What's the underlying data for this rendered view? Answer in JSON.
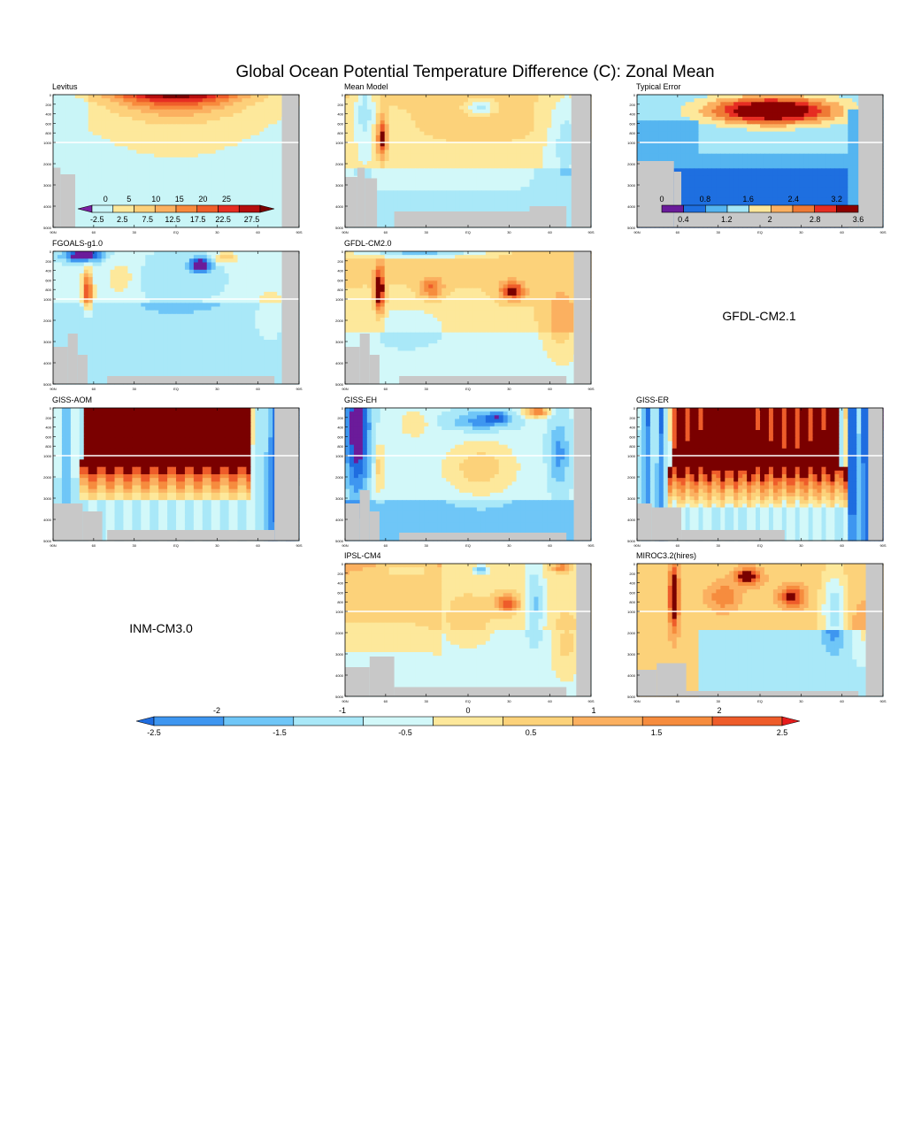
{
  "chart_data": {
    "type": "heatmap",
    "title": "Global Ocean Potential Temperature Difference (C): Zonal Mean",
    "y_depth_ticks_upper": [
      "0",
      "200",
      "400",
      "600",
      "800",
      "1000"
    ],
    "y_depth_ticks_lower": [
      "2000",
      "3000",
      "4000",
      "5000"
    ],
    "x_lat_ticks": [
      "90N",
      "60",
      "30",
      "EQ",
      "30",
      "60",
      "90S"
    ],
    "panels": [
      {
        "name": "Levitus",
        "kind": "climatology",
        "field": "levitus"
      },
      {
        "name": "Mean Model",
        "kind": "diff",
        "field": "mean"
      },
      {
        "name": "Typical Error",
        "kind": "error",
        "field": "typical"
      },
      {
        "name": "FGOALS-g1.0",
        "kind": "diff",
        "field": "fgoals"
      },
      {
        "name": "GFDL-CM2.0",
        "kind": "diff",
        "field": "gfdl20"
      },
      {
        "name": "GFDL-CM2.1",
        "kind": "label_only"
      },
      {
        "name": "GISS-AOM",
        "kind": "diff",
        "field": "aom"
      },
      {
        "name": "GISS-EH",
        "kind": "diff",
        "field": "eh"
      },
      {
        "name": "GISS-ER",
        "kind": "diff",
        "field": "er"
      },
      {
        "name": "INM-CM3.0",
        "kind": "label_only"
      },
      {
        "name": "IPSL-CM4",
        "kind": "diff",
        "field": "ipsl"
      },
      {
        "name": "MIROC3.2(hires)",
        "kind": "diff",
        "field": "miroc"
      }
    ],
    "colorbar_levitus": {
      "top_labels": [
        "0",
        "5",
        "10",
        "15",
        "20",
        "25"
      ],
      "bottom_labels": [
        "-2.5",
        "2.5",
        "7.5",
        "12.5",
        "17.5",
        "22.5",
        "27.5"
      ],
      "colors": [
        "#7b1fa2",
        "#c9f5f7",
        "#fde89b",
        "#fdd07a",
        "#fbb060",
        "#f88a3d",
        "#ef5e2a",
        "#e62d22",
        "#b50d0d",
        "#7a0000"
      ]
    },
    "colorbar_error": {
      "top_labels": [
        "0",
        "0.8",
        "1.6",
        "2.4",
        "3.2"
      ],
      "bottom_labels": [
        "0.4",
        "1.2",
        "2",
        "2.8",
        "3.6"
      ],
      "colors": [
        "#6a1b9a",
        "#1e6fe0",
        "#55b5f0",
        "#a4e6f7",
        "#fde89b",
        "#fbb060",
        "#ef7a35",
        "#e62d22",
        "#8b0000"
      ]
    },
    "colorbar_main": {
      "top_labels": [
        "-2",
        "-1",
        "0",
        "1",
        "2"
      ],
      "bottom_labels": [
        "-2.5",
        "-1.5",
        "-0.5",
        "0.5",
        "1.5",
        "2.5"
      ],
      "colors": [
        "#1f6de0",
        "#3e96f0",
        "#6fc6f7",
        "#a9e8f8",
        "#d2f8f9",
        "#fde89b",
        "#fcd27a",
        "#fbb060",
        "#f68c3e",
        "#ee5c2a",
        "#e61c1c"
      ],
      "below_color": "#6b1b9a",
      "above_color": "#7a0000"
    },
    "palette": {
      "land": "#c8c8c8",
      "grid_line": "#ffffff"
    }
  }
}
